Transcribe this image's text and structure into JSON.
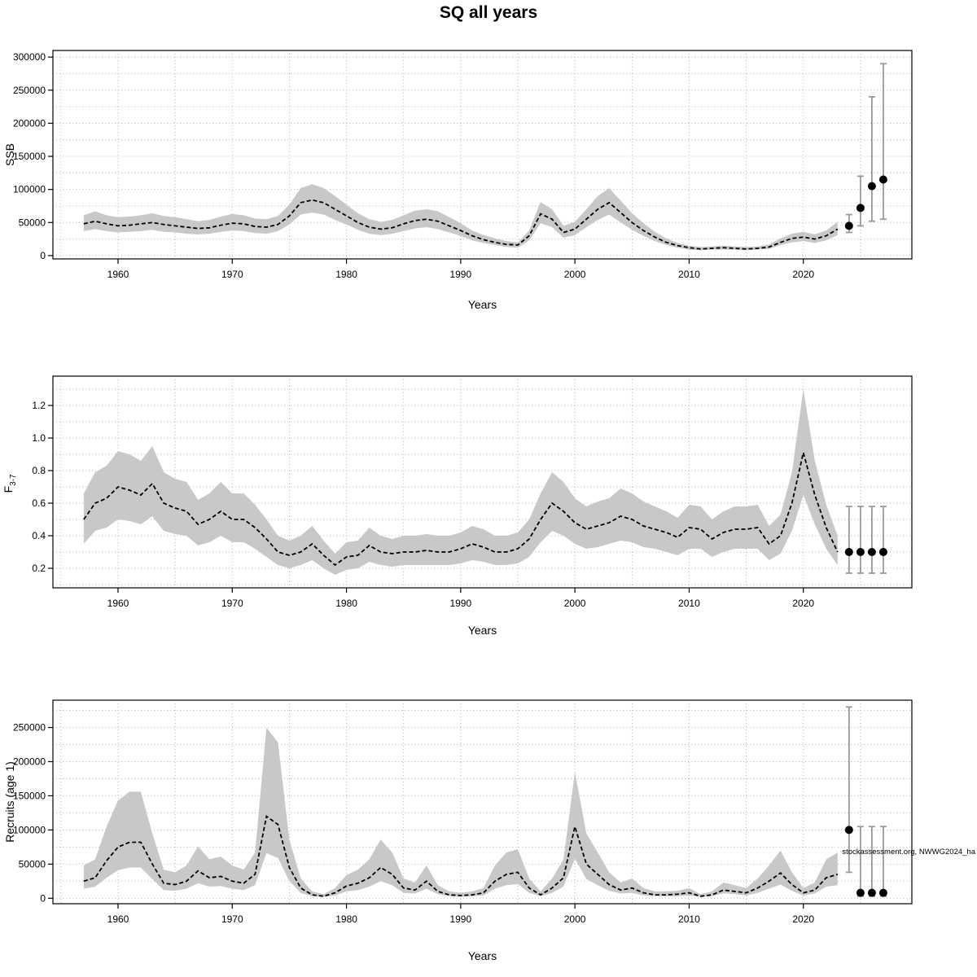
{
  "title": "SQ all years",
  "watermark": "stockassessment.org, NWWG2024_ha",
  "colors": {
    "band": "#c8c8c8",
    "line": "#000000",
    "grid": "#b5b5b5",
    "errorbar": "#9a9a9a",
    "point": "#000000",
    "axis": "#000000"
  },
  "chart_data": [
    {
      "name": "ssb",
      "type": "line",
      "ylabel": "SSB",
      "xlabel": "Years",
      "xlim": [
        1954.3,
        2029.5
      ],
      "ylim": [
        -5000,
        310000
      ],
      "xticks": [
        1960,
        1970,
        1980,
        1990,
        2000,
        2010,
        2020
      ],
      "xtick_labels": [
        "1960",
        "1970",
        "1980",
        "1990",
        "2000",
        "2010",
        "2020"
      ],
      "yticks": [
        0,
        50000,
        100000,
        150000,
        200000,
        250000,
        300000
      ],
      "ytick_labels": [
        "0",
        "50000",
        "100000",
        "150000",
        "200000",
        "250000",
        "300000"
      ],
      "grid": {
        "x_start": 1955,
        "x_end": 2025,
        "x_step": 5,
        "y_start": 0,
        "y_end": 300000,
        "y_step": 25000
      },
      "x": [
        1957,
        1958,
        1959,
        1960,
        1961,
        1962,
        1963,
        1964,
        1965,
        1966,
        1967,
        1968,
        1969,
        1970,
        1971,
        1972,
        1973,
        1974,
        1975,
        1976,
        1977,
        1978,
        1979,
        1980,
        1981,
        1982,
        1983,
        1984,
        1985,
        1986,
        1987,
        1988,
        1989,
        1990,
        1991,
        1992,
        1993,
        1994,
        1995,
        1996,
        1997,
        1998,
        1999,
        2000,
        2001,
        2002,
        2003,
        2004,
        2005,
        2006,
        2007,
        2008,
        2009,
        2010,
        2011,
        2012,
        2013,
        2014,
        2015,
        2016,
        2017,
        2018,
        2019,
        2020,
        2021,
        2022,
        2023
      ],
      "series": [
        {
          "name": "estimate",
          "values": [
            48000,
            52000,
            48000,
            45000,
            46000,
            48000,
            50000,
            47000,
            45000,
            43000,
            41000,
            42000,
            46000,
            49000,
            48000,
            44000,
            43000,
            47000,
            60000,
            80000,
            84000,
            80000,
            70000,
            60000,
            50000,
            43000,
            40000,
            42000,
            48000,
            53000,
            55000,
            52000,
            45000,
            38000,
            30000,
            24000,
            20000,
            17000,
            16000,
            30000,
            63000,
            55000,
            35000,
            40000,
            55000,
            70000,
            80000,
            65000,
            50000,
            38000,
            28000,
            20000,
            15000,
            12000,
            10000,
            11000,
            12000,
            11000,
            10000,
            11000,
            13000,
            20000,
            26000,
            28000,
            25000,
            30000,
            40000
          ]
        },
        {
          "name": "lower_ci",
          "values": [
            37000,
            40000,
            37000,
            35000,
            36000,
            37000,
            39000,
            36000,
            35000,
            33000,
            32000,
            33000,
            36000,
            38000,
            37000,
            34000,
            33000,
            37000,
            47000,
            62000,
            65000,
            62000,
            54000,
            47000,
            39000,
            33000,
            31000,
            33000,
            37000,
            41000,
            43000,
            40000,
            35000,
            30000,
            23000,
            19000,
            16000,
            13000,
            12000,
            23000,
            49000,
            43000,
            27000,
            31000,
            43000,
            54000,
            62000,
            50000,
            39000,
            30000,
            22000,
            16000,
            12000,
            9000,
            8000,
            9000,
            9000,
            9000,
            8000,
            9000,
            10000,
            16000,
            20000,
            22000,
            19000,
            23000,
            31000
          ]
        },
        {
          "name": "upper_ci",
          "values": [
            61000,
            67000,
            61000,
            58000,
            59000,
            61000,
            64000,
            60000,
            58000,
            55000,
            52000,
            54000,
            59000,
            63000,
            61000,
            56000,
            55000,
            60000,
            77000,
            102000,
            108000,
            102000,
            90000,
            77000,
            64000,
            55000,
            51000,
            54000,
            61000,
            68000,
            70000,
            67000,
            58000,
            49000,
            38000,
            31000,
            26000,
            22000,
            20000,
            38000,
            81000,
            70000,
            45000,
            51000,
            70000,
            90000,
            102000,
            83000,
            64000,
            49000,
            36000,
            26000,
            19000,
            15000,
            13000,
            14000,
            15000,
            14000,
            13000,
            14000,
            17000,
            26000,
            33000,
            36000,
            32000,
            38000,
            51000
          ]
        }
      ],
      "forecast": {
        "x": [
          2024,
          2025,
          2026,
          2027
        ],
        "y": [
          45000,
          72000,
          105000,
          115000
        ],
        "lo": [
          35000,
          45000,
          52000,
          55000
        ],
        "hi": [
          62000,
          120000,
          240000,
          290000
        ]
      }
    },
    {
      "name": "f",
      "type": "line",
      "ylabel": "F3-7",
      "ylabel_main": "F",
      "ylabel_sub": "3-7",
      "xlabel": "Years",
      "xlim": [
        1954.3,
        2029.5
      ],
      "ylim": [
        0.08,
        1.38
      ],
      "xticks": [
        1960,
        1970,
        1980,
        1990,
        2000,
        2010,
        2020
      ],
      "xtick_labels": [
        "1960",
        "1970",
        "1980",
        "1990",
        "2000",
        "2010",
        "2020"
      ],
      "yticks": [
        0.2,
        0.4,
        0.6,
        0.8,
        1.0,
        1.2
      ],
      "ytick_labels": [
        "0.2",
        "0.4",
        "0.6",
        "0.8",
        "1.0",
        "1.2"
      ],
      "grid": {
        "x_start": 1955,
        "x_end": 2025,
        "x_step": 5,
        "y_start": 0.1,
        "y_end": 1.3,
        "y_step": 0.1
      },
      "x": [
        1957,
        1958,
        1959,
        1960,
        1961,
        1962,
        1963,
        1964,
        1965,
        1966,
        1967,
        1968,
        1969,
        1970,
        1971,
        1972,
        1973,
        1974,
        1975,
        1976,
        1977,
        1978,
        1979,
        1980,
        1981,
        1982,
        1983,
        1984,
        1985,
        1986,
        1987,
        1988,
        1989,
        1990,
        1991,
        1992,
        1993,
        1994,
        1995,
        1996,
        1997,
        1998,
        1999,
        2000,
        2001,
        2002,
        2003,
        2004,
        2005,
        2006,
        2007,
        2008,
        2009,
        2010,
        2011,
        2012,
        2013,
        2014,
        2015,
        2016,
        2017,
        2018,
        2019,
        2020,
        2021,
        2022,
        2023
      ],
      "series": [
        {
          "name": "estimate",
          "values": [
            0.5,
            0.6,
            0.63,
            0.7,
            0.68,
            0.65,
            0.72,
            0.6,
            0.57,
            0.55,
            0.47,
            0.5,
            0.55,
            0.5,
            0.5,
            0.45,
            0.38,
            0.3,
            0.28,
            0.3,
            0.35,
            0.28,
            0.22,
            0.27,
            0.28,
            0.34,
            0.3,
            0.29,
            0.3,
            0.3,
            0.31,
            0.3,
            0.3,
            0.32,
            0.35,
            0.33,
            0.3,
            0.3,
            0.32,
            0.38,
            0.5,
            0.6,
            0.55,
            0.48,
            0.44,
            0.46,
            0.48,
            0.52,
            0.5,
            0.46,
            0.44,
            0.42,
            0.39,
            0.45,
            0.44,
            0.38,
            0.42,
            0.44,
            0.44,
            0.45,
            0.35,
            0.4,
            0.6,
            0.91,
            0.65,
            0.45,
            0.3
          ]
        },
        {
          "name": "lower_ci",
          "values": [
            0.35,
            0.43,
            0.45,
            0.5,
            0.49,
            0.47,
            0.52,
            0.43,
            0.41,
            0.4,
            0.34,
            0.36,
            0.4,
            0.36,
            0.36,
            0.32,
            0.27,
            0.22,
            0.2,
            0.22,
            0.25,
            0.2,
            0.16,
            0.19,
            0.2,
            0.24,
            0.22,
            0.21,
            0.22,
            0.22,
            0.22,
            0.22,
            0.22,
            0.23,
            0.25,
            0.24,
            0.22,
            0.22,
            0.23,
            0.27,
            0.36,
            0.43,
            0.4,
            0.35,
            0.32,
            0.33,
            0.35,
            0.37,
            0.36,
            0.33,
            0.32,
            0.3,
            0.28,
            0.32,
            0.32,
            0.27,
            0.3,
            0.32,
            0.32,
            0.32,
            0.25,
            0.29,
            0.43,
            0.65,
            0.47,
            0.32,
            0.22
          ]
        },
        {
          "name": "upper_ci",
          "values": [
            0.66,
            0.79,
            0.83,
            0.92,
            0.9,
            0.86,
            0.95,
            0.79,
            0.75,
            0.73,
            0.62,
            0.66,
            0.73,
            0.66,
            0.66,
            0.59,
            0.5,
            0.4,
            0.37,
            0.4,
            0.46,
            0.37,
            0.29,
            0.36,
            0.37,
            0.45,
            0.4,
            0.38,
            0.4,
            0.4,
            0.41,
            0.4,
            0.4,
            0.42,
            0.46,
            0.44,
            0.4,
            0.4,
            0.42,
            0.5,
            0.66,
            0.79,
            0.73,
            0.63,
            0.58,
            0.61,
            0.63,
            0.69,
            0.66,
            0.61,
            0.58,
            0.55,
            0.51,
            0.59,
            0.58,
            0.5,
            0.55,
            0.58,
            0.58,
            0.59,
            0.46,
            0.53,
            0.79,
            1.3,
            0.86,
            0.59,
            0.4
          ]
        }
      ],
      "forecast": {
        "x": [
          2024,
          2025,
          2026,
          2027
        ],
        "y": [
          0.3,
          0.3,
          0.3,
          0.3
        ],
        "lo": [
          0.17,
          0.17,
          0.17,
          0.17
        ],
        "hi": [
          0.58,
          0.58,
          0.58,
          0.58
        ]
      }
    },
    {
      "name": "recruits",
      "type": "line",
      "ylabel": "Recruits (age 1)",
      "xlabel": "Years",
      "xlim": [
        1954.3,
        2029.5
      ],
      "ylim": [
        -8000,
        290000
      ],
      "xticks": [
        1960,
        1970,
        1980,
        1990,
        2000,
        2010,
        2020
      ],
      "xtick_labels": [
        "1960",
        "1970",
        "1980",
        "1990",
        "2000",
        "2010",
        "2020"
      ],
      "yticks": [
        0,
        50000,
        100000,
        150000,
        200000,
        250000
      ],
      "ytick_labels": [
        "0",
        "50000",
        "100000",
        "150000",
        "200000",
        "250000"
      ],
      "grid": {
        "x_start": 1955,
        "x_end": 2025,
        "x_step": 5,
        "y_start": 0,
        "y_end": 275000,
        "y_step": 25000
      },
      "x": [
        1957,
        1958,
        1959,
        1960,
        1961,
        1962,
        1963,
        1964,
        1965,
        1966,
        1967,
        1968,
        1969,
        1970,
        1971,
        1972,
        1973,
        1974,
        1975,
        1976,
        1977,
        1978,
        1979,
        1980,
        1981,
        1982,
        1983,
        1984,
        1985,
        1986,
        1987,
        1988,
        1989,
        1990,
        1991,
        1992,
        1993,
        1994,
        1995,
        1996,
        1997,
        1998,
        1999,
        2000,
        2001,
        2002,
        2003,
        2004,
        2005,
        2006,
        2007,
        2008,
        2009,
        2010,
        2011,
        2012,
        2013,
        2014,
        2015,
        2016,
        2017,
        2018,
        2019,
        2020,
        2021,
        2022,
        2023
      ],
      "series": [
        {
          "name": "estimate",
          "values": [
            25000,
            30000,
            55000,
            75000,
            82000,
            82000,
            50000,
            22000,
            20000,
            25000,
            40000,
            30000,
            32000,
            25000,
            22000,
            35000,
            120000,
            108000,
            45000,
            15000,
            5000,
            3000,
            8000,
            18000,
            22000,
            30000,
            45000,
            35000,
            15000,
            12000,
            25000,
            10000,
            5000,
            4000,
            5000,
            8000,
            25000,
            35000,
            38000,
            15000,
            5000,
            15000,
            30000,
            105000,
            50000,
            35000,
            20000,
            12000,
            15000,
            8000,
            5000,
            5000,
            6000,
            8000,
            3000,
            5000,
            12000,
            10000,
            8000,
            15000,
            25000,
            37000,
            20000,
            8000,
            12000,
            30000,
            35000
          ]
        },
        {
          "name": "lower_ci",
          "values": [
            14000,
            17000,
            30000,
            41000,
            45000,
            45000,
            28000,
            12000,
            11000,
            14000,
            22000,
            17000,
            18000,
            14000,
            12000,
            19000,
            66000,
            59000,
            25000,
            8000,
            3000,
            2000,
            4000,
            10000,
            12000,
            17000,
            25000,
            19000,
            8000,
            7000,
            14000,
            6000,
            3000,
            2000,
            3000,
            4000,
            14000,
            19000,
            21000,
            8000,
            3000,
            8000,
            17000,
            58000,
            28000,
            19000,
            11000,
            7000,
            8000,
            4000,
            3000,
            3000,
            3000,
            4000,
            2000,
            3000,
            7000,
            6000,
            4000,
            8000,
            14000,
            20000,
            11000,
            4000,
            7000,
            17000,
            19000
          ]
        },
        {
          "name": "upper_ci",
          "values": [
            48000,
            57000,
            105000,
            143000,
            156000,
            156000,
            95000,
            42000,
            38000,
            48000,
            76000,
            57000,
            61000,
            48000,
            42000,
            67000,
            250000,
            228000,
            86000,
            29000,
            10000,
            6000,
            15000,
            34000,
            42000,
            57000,
            86000,
            67000,
            29000,
            23000,
            48000,
            19000,
            10000,
            8000,
            10000,
            15000,
            48000,
            67000,
            72000,
            29000,
            10000,
            29000,
            57000,
            185000,
            95000,
            67000,
            38000,
            23000,
            29000,
            15000,
            10000,
            10000,
            11000,
            15000,
            6000,
            10000,
            23000,
            19000,
            15000,
            29000,
            48000,
            70000,
            38000,
            15000,
            23000,
            57000,
            67000
          ]
        }
      ],
      "forecast": {
        "x": [
          2024,
          2025,
          2026,
          2027
        ],
        "y": [
          100000,
          8000,
          8000,
          8000
        ],
        "lo": [
          38000,
          3000,
          3000,
          3000
        ],
        "hi": [
          280000,
          105000,
          105000,
          105000
        ]
      }
    }
  ]
}
